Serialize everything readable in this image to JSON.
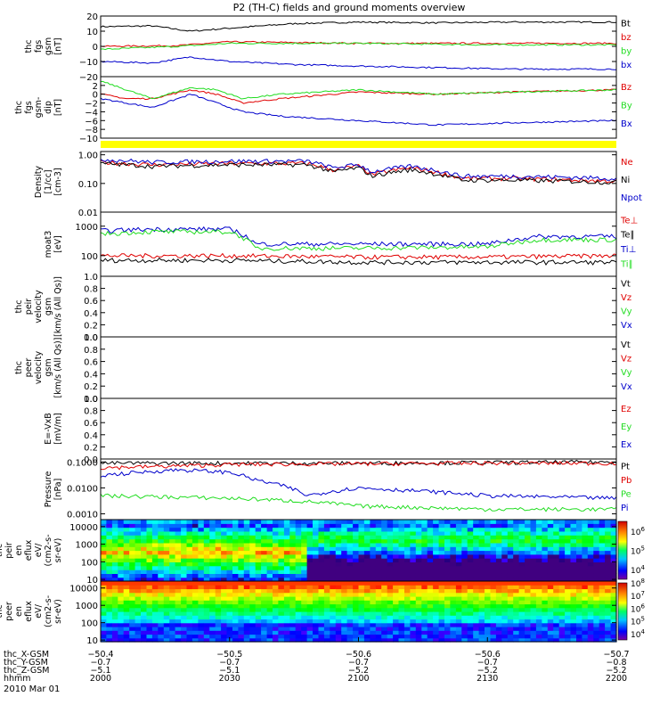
{
  "title": "P2 (TH-C) fields and ground moments overview",
  "date_label": "2010 Mar 01",
  "colors": {
    "black": "#000000",
    "red": "#e00000",
    "green": "#22dd22",
    "blue": "#0000cc",
    "yellow": "#ffff00"
  },
  "chart_data": [
    {
      "type": "line",
      "ylabel_lines": [
        "thc",
        "fgs",
        "gsm",
        "[nT]"
      ],
      "ylim": [
        -20,
        20
      ],
      "yticks": [
        {
          "v": 20,
          "label": "20"
        },
        {
          "v": 10,
          "label": "10"
        },
        {
          "v": 0,
          "label": "0"
        },
        {
          "v": -10,
          "label": "−10"
        },
        {
          "v": -20,
          "label": "−20"
        }
      ],
      "series": [
        {
          "name": "Bt",
          "color": "#000000",
          "t": [
            0,
            20,
            35,
            50,
            75,
            100,
            130,
            160,
            200
          ],
          "values": [
            13,
            13.5,
            10,
            12,
            15,
            16,
            15.5,
            16,
            16
          ]
        },
        {
          "name": "bz",
          "color": "#e00000",
          "t": [
            0,
            30,
            50,
            100,
            150,
            200
          ],
          "values": [
            0,
            0.5,
            3,
            2,
            2,
            2
          ]
        },
        {
          "name": "by",
          "color": "#22dd22",
          "t": [
            0,
            30,
            50,
            100,
            150,
            200
          ],
          "values": [
            -2,
            0,
            2,
            2,
            1,
            1
          ]
        },
        {
          "name": "bx",
          "color": "#0000cc",
          "t": [
            0,
            20,
            35,
            50,
            75,
            100,
            130,
            160,
            200
          ],
          "values": [
            -10,
            -11,
            -7,
            -10,
            -12,
            -13,
            -14,
            -15,
            -15
          ]
        }
      ]
    },
    {
      "type": "line",
      "ylabel_lines": [
        "thc",
        "fgs",
        "gsm-",
        "dip",
        "[nT]"
      ],
      "ylim": [
        -10,
        4
      ],
      "yticks": [
        {
          "v": 2,
          "label": "2"
        },
        {
          "v": 0,
          "label": "0"
        },
        {
          "v": -2,
          "label": "−2"
        },
        {
          "v": -4,
          "label": "−4"
        },
        {
          "v": -6,
          "label": "−6"
        },
        {
          "v": -8,
          "label": "−8"
        },
        {
          "v": -10,
          "label": "−10"
        }
      ],
      "series": [
        {
          "name": "Bz",
          "color": "#e00000",
          "t": [
            0,
            10,
            20,
            35,
            45,
            55,
            70,
            100,
            130,
            160,
            200
          ],
          "values": [
            0,
            -1,
            -1,
            1,
            0,
            -2,
            -1,
            0.5,
            0,
            0.5,
            1
          ]
        },
        {
          "name": "By",
          "color": "#22dd22",
          "t": [
            0,
            10,
            20,
            35,
            45,
            55,
            70,
            100,
            130,
            160,
            200
          ],
          "values": [
            3,
            1,
            -1,
            1.5,
            1,
            -1,
            0,
            1,
            0,
            0.5,
            1
          ]
        },
        {
          "name": "Bx",
          "color": "#0000cc",
          "t": [
            0,
            10,
            20,
            35,
            45,
            55,
            70,
            100,
            130,
            160,
            200
          ],
          "values": [
            -1,
            -2,
            -3,
            0,
            -2,
            -4,
            -5,
            -6,
            -7,
            -6.5,
            -6
          ]
        }
      ]
    },
    {
      "type": "line",
      "ylabel_lines": [
        "Density",
        "[1/cc]",
        "[cm-3]"
      ],
      "yscale": "log",
      "ylim": [
        0.01,
        1.3
      ],
      "yticks": [
        {
          "v": 1.0,
          "label": "1.00"
        },
        {
          "v": 0.1,
          "label": "0.10"
        },
        {
          "v": 0.01,
          "label": "0.01"
        }
      ],
      "series": [
        {
          "name": "Ne",
          "color": "#e00000",
          "t": [
            0,
            20,
            50,
            80,
            90,
            100,
            105,
            120,
            140,
            160,
            200
          ],
          "values": [
            0.55,
            0.45,
            0.5,
            0.5,
            0.3,
            0.4,
            0.2,
            0.35,
            0.15,
            0.15,
            0.12
          ]
        },
        {
          "name": "Ni",
          "color": "#000000",
          "t": [
            0,
            20,
            50,
            80,
            90,
            100,
            105,
            120,
            140,
            160,
            200
          ],
          "values": [
            0.5,
            0.4,
            0.45,
            0.45,
            0.25,
            0.35,
            0.18,
            0.3,
            0.13,
            0.13,
            0.11
          ]
        },
        {
          "name": "Npot",
          "color": "#0000cc",
          "t": [
            0,
            20,
            50,
            80,
            90,
            100,
            105,
            120,
            140,
            160,
            200
          ],
          "values": [
            0.7,
            0.55,
            0.6,
            0.6,
            0.35,
            0.45,
            0.25,
            0.4,
            0.18,
            0.18,
            0.15
          ]
        }
      ]
    },
    {
      "type": "line",
      "ylabel_lines": [
        "moat3",
        "[eV]"
      ],
      "yscale": "log",
      "ylim": [
        20,
        3000
      ],
      "yticks": [
        {
          "v": 1000,
          "label": "1000"
        },
        {
          "v": 100,
          "label": "100"
        }
      ],
      "series": [
        {
          "name": "Te⊥",
          "color": "#e00000",
          "t": [
            0,
            50,
            100,
            150,
            200
          ],
          "values": [
            100,
            100,
            90,
            90,
            100
          ]
        },
        {
          "name": "Te∥",
          "color": "#000000",
          "t": [
            0,
            50,
            100,
            150,
            200
          ],
          "values": [
            70,
            70,
            60,
            60,
            60
          ]
        },
        {
          "name": "Ti⊥",
          "color": "#0000cc",
          "t": [
            0,
            20,
            50,
            60,
            100,
            150,
            170,
            200
          ],
          "values": [
            700,
            800,
            800,
            250,
            250,
            250,
            450,
            450
          ]
        },
        {
          "name": "Ti∥",
          "color": "#22dd22",
          "t": [
            0,
            20,
            50,
            60,
            100,
            150,
            170,
            200
          ],
          "values": [
            550,
            650,
            650,
            180,
            180,
            200,
            350,
            350
          ]
        }
      ]
    },
    {
      "type": "line",
      "ylabel_lines": [
        "thc",
        "peir",
        "velocity",
        "gsm",
        "[km/s (All Qs)]"
      ],
      "ylim": [
        0,
        1
      ],
      "yticks": [
        {
          "v": 0,
          "label": "0.0"
        },
        {
          "v": 0.2,
          "label": "0.2"
        },
        {
          "v": 0.4,
          "label": "0.4"
        },
        {
          "v": 0.6,
          "label": "0.6"
        },
        {
          "v": 0.8,
          "label": "0.8"
        },
        {
          "v": 1,
          "label": "1.0"
        }
      ],
      "series": [
        {
          "name": "Vt",
          "color": "#000000"
        },
        {
          "name": "Vz",
          "color": "#e00000"
        },
        {
          "name": "Vy",
          "color": "#22dd22"
        },
        {
          "name": "Vx",
          "color": "#0000cc"
        }
      ]
    },
    {
      "type": "line",
      "ylabel_lines": [
        "thc",
        "peer",
        "velocity",
        "gsm",
        "[km/s (All Qs)]"
      ],
      "ylim": [
        0,
        1
      ],
      "yticks": [
        {
          "v": 0,
          "label": "0.0"
        },
        {
          "v": 0.2,
          "label": "0.2"
        },
        {
          "v": 0.4,
          "label": "0.4"
        },
        {
          "v": 0.6,
          "label": "0.6"
        },
        {
          "v": 0.8,
          "label": "0.8"
        },
        {
          "v": 1,
          "label": "1.0"
        }
      ],
      "series": [
        {
          "name": "Vt",
          "color": "#000000"
        },
        {
          "name": "Vz",
          "color": "#e00000"
        },
        {
          "name": "Vy",
          "color": "#22dd22"
        },
        {
          "name": "Vx",
          "color": "#0000cc"
        }
      ]
    },
    {
      "type": "line",
      "ylabel_lines": [
        "E=-VxB",
        "[mV/m]"
      ],
      "ylim": [
        0,
        1
      ],
      "yticks": [
        {
          "v": 0,
          "label": "0.0"
        },
        {
          "v": 0.2,
          "label": "0.2"
        },
        {
          "v": 0.4,
          "label": "0.4"
        },
        {
          "v": 0.6,
          "label": "0.6"
        },
        {
          "v": 0.8,
          "label": "0.8"
        },
        {
          "v": 1,
          "label": "1.0"
        }
      ],
      "series": [
        {
          "name": "Ez",
          "color": "#e00000"
        },
        {
          "name": "Ey",
          "color": "#22dd22"
        },
        {
          "name": "Ex",
          "color": "#0000cc"
        }
      ]
    },
    {
      "type": "line",
      "ylabel_lines": [
        "Pressure",
        "[nPa]"
      ],
      "yscale": "log",
      "ylim": [
        0.0006,
        0.13
      ],
      "yticks": [
        {
          "v": 0.1,
          "label": "0.1000"
        },
        {
          "v": 0.01,
          "label": "0.0100"
        },
        {
          "v": 0.001,
          "label": "0.0010"
        }
      ],
      "series": [
        {
          "name": "Pt",
          "color": "#000000",
          "t": [
            0,
            50,
            100,
            150,
            200
          ],
          "values": [
            0.09,
            0.09,
            0.09,
            0.095,
            0.1
          ]
        },
        {
          "name": "Pb",
          "color": "#e00000",
          "t": [
            0,
            30,
            50,
            100,
            150,
            200
          ],
          "values": [
            0.06,
            0.07,
            0.08,
            0.085,
            0.09,
            0.09
          ]
        },
        {
          "name": "Pe",
          "color": "#22dd22",
          "t": [
            0,
            50,
            80,
            100,
            150,
            200
          ],
          "values": [
            0.005,
            0.004,
            0.003,
            0.002,
            0.0015,
            0.0015
          ]
        },
        {
          "name": "Pi",
          "color": "#0000cc",
          "t": [
            0,
            30,
            50,
            60,
            80,
            100,
            150,
            200
          ],
          "values": [
            0.03,
            0.05,
            0.04,
            0.02,
            0.005,
            0.01,
            0.005,
            0.004
          ]
        }
      ]
    },
    {
      "type": "heatmap",
      "ylabel_lines": [
        "thc",
        "peir",
        "en",
        "eflux",
        "eV/",
        "(cm2-s-",
        "sr-eV)"
      ],
      "yscale": "log",
      "ylim": [
        8,
        25000
      ],
      "yticks": [
        {
          "v": 10000,
          "label": "10000"
        },
        {
          "v": 1000,
          "label": "1000"
        },
        {
          "v": 100,
          "label": "100"
        },
        {
          "v": 10,
          "label": "10"
        }
      ],
      "colorbar": {
        "ticks": [
          {
            "exp": 6,
            "label": "10"
          },
          {
            "exp": 5,
            "label": "10"
          },
          {
            "exp": 4,
            "label": "10"
          }
        ],
        "range_exp": [
          3.5,
          6.5
        ]
      }
    },
    {
      "type": "heatmap",
      "ylabel_lines": [
        "thc",
        "peer",
        "en",
        "eflux",
        "eV/",
        "(cm2-s-",
        "sr-eV)"
      ],
      "yscale": "log",
      "ylim": [
        8,
        25000
      ],
      "yticks": [
        {
          "v": 10000,
          "label": "10000"
        },
        {
          "v": 1000,
          "label": "1000"
        },
        {
          "v": 100,
          "label": "100"
        },
        {
          "v": 10,
          "label": "10"
        }
      ],
      "colorbar": {
        "ticks": [
          {
            "exp": 8,
            "label": "10"
          },
          {
            "exp": 7,
            "label": "10"
          },
          {
            "exp": 6,
            "label": "10"
          },
          {
            "exp": 5,
            "label": "10"
          },
          {
            "exp": 4,
            "label": "10"
          }
        ],
        "range_exp": [
          3.5,
          8.0
        ]
      }
    }
  ],
  "x_axis": {
    "rows": [
      {
        "label": "thc_X-GSM",
        "values": [
          "−50.4",
          "−50.5",
          "−50.6",
          "−50.6",
          "−50.7"
        ]
      },
      {
        "label": "thc_Y-GSM",
        "values": [
          "−0.7",
          "−0.7",
          "−0.7",
          "−0.7",
          "−0.8"
        ]
      },
      {
        "label": "thc_Z-GSM",
        "values": [
          "−5.1",
          "−5.1",
          "−5.2",
          "−5.2",
          "−5.2"
        ]
      },
      {
        "label": "hhmm",
        "values": [
          "2000",
          "2030",
          "2100",
          "2130",
          "2200"
        ]
      }
    ]
  }
}
